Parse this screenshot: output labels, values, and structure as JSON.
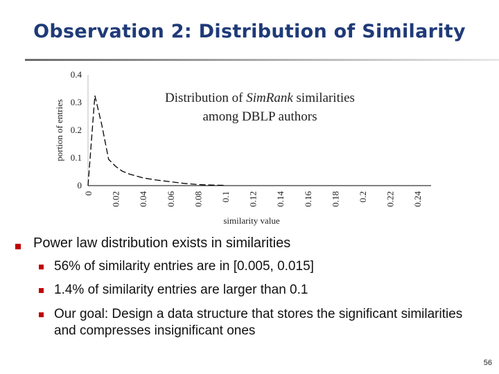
{
  "slide": {
    "title": "Observation 2: Distribution of Similarity",
    "page_number": "56"
  },
  "chart_title_line1_a": "Distribution of ",
  "chart_title_line1_em": "SimRank",
  "chart_title_line1_b": " similarities",
  "chart_title_line2": "among DBLP authors",
  "chart_data": {
    "type": "line",
    "xlabel": "similarity value",
    "ylabel": "portion of entries",
    "xlim": [
      0,
      0.25
    ],
    "ylim": [
      0,
      0.4
    ],
    "x_ticks": [
      "0",
      "0.02",
      "0.04",
      "0.06",
      "0.08",
      "0.1",
      "0.12",
      "0.14",
      "0.16",
      "0.18",
      "0.2",
      "0.22",
      "0.24"
    ],
    "y_ticks": [
      "0",
      "0.1",
      "0.2",
      "0.3",
      "0.4"
    ],
    "grid": false,
    "series": [
      {
        "line_style": "dashed",
        "color": "#000000",
        "x": [
          0.0,
          0.005,
          0.01,
          0.015,
          0.02,
          0.025,
          0.03,
          0.035,
          0.04,
          0.05,
          0.06,
          0.07,
          0.08,
          0.09,
          0.1
        ],
        "y": [
          0.0,
          0.325,
          0.22,
          0.095,
          0.07,
          0.052,
          0.042,
          0.035,
          0.028,
          0.02,
          0.014,
          0.008,
          0.004,
          0.002,
          0.001
        ]
      }
    ]
  },
  "bullets": {
    "main": "Power law distribution exists in similarities",
    "sub": [
      "56% of similarity entries are in [0.005, 0.015]",
      "1.4% of similarity entries are larger than 0.1",
      "Our goal: Design a data structure that stores the significant similarities and compresses insignificant ones"
    ]
  },
  "colors": {
    "title": "#1f3a78",
    "bullet": "#c00000"
  }
}
